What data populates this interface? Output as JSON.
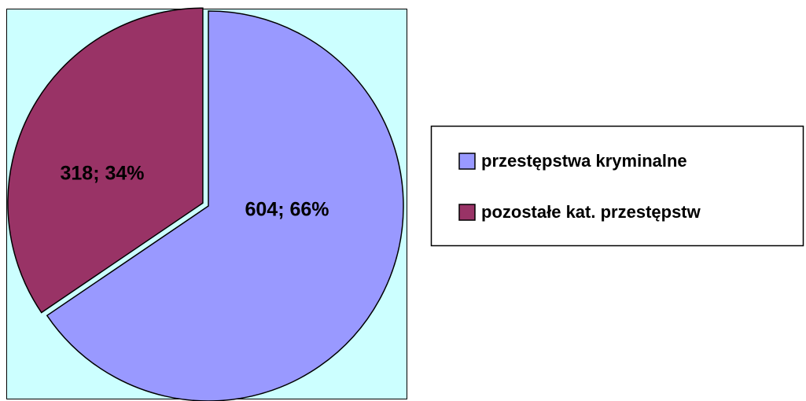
{
  "chart_data": {
    "type": "pie",
    "categories": [
      "przestępstwa kryminalne",
      "pozostałe kat. przestępstw"
    ],
    "values": [
      604,
      318
    ],
    "value_labels": [
      "604; 66%",
      "318; 34%"
    ],
    "colors": [
      "#9999ff",
      "#993366"
    ],
    "legend": "right"
  }
}
